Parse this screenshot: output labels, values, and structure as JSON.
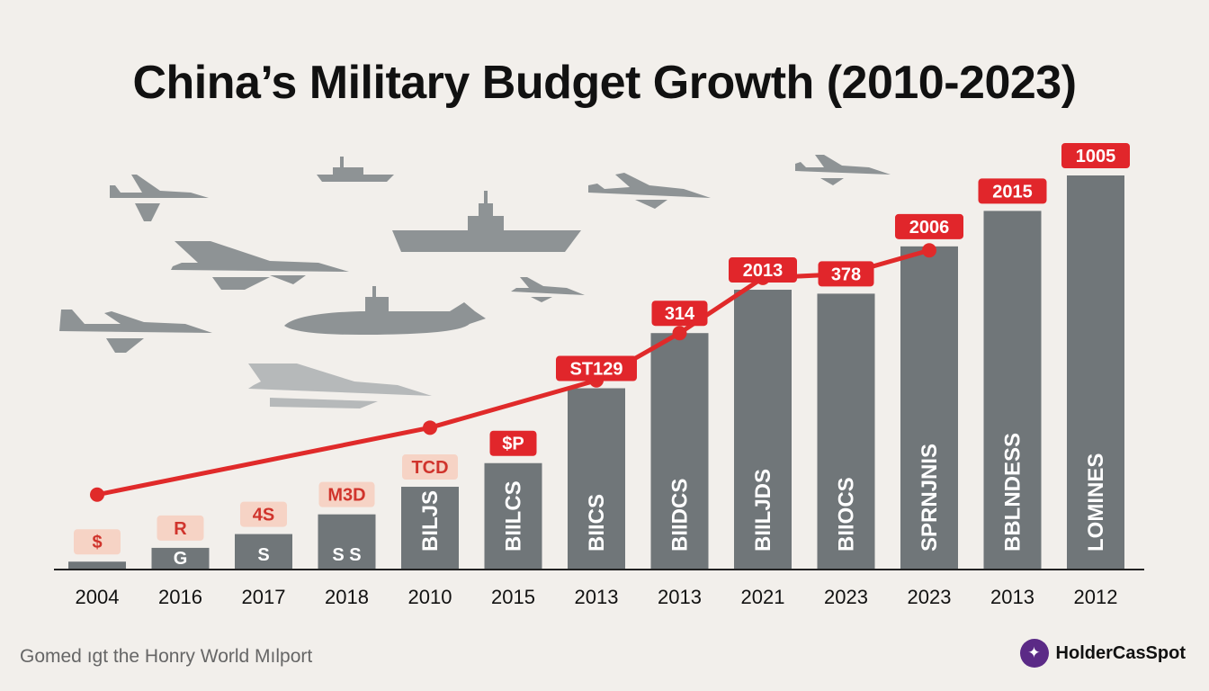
{
  "chart_data": {
    "type": "bar",
    "title": "China’s Military Budget Growth (2010-2023)",
    "categories": [
      "2004",
      "2016",
      "2017",
      "2018",
      "2010",
      "2015",
      "2013",
      "2013",
      "2021",
      "2023",
      "2023",
      "2013",
      "2012"
    ],
    "values": [
      2,
      5.5,
      9,
      14,
      21,
      27,
      46,
      60,
      71,
      70,
      82,
      91,
      100
    ],
    "bar_labels": [
      "",
      "G",
      "S",
      "S S",
      "BILJS",
      "BIILCS",
      "BIICS",
      "BIIDCS",
      "BIILJDS",
      "BIIOCS",
      "SPRNJNIS",
      "BBLNDESS",
      "LOMINES"
    ],
    "value_labels": [
      "$",
      "R",
      "4S",
      "M3D",
      "TCD",
      "$P",
      "ST129",
      "314",
      "2013",
      "378",
      "2006",
      "2015",
      "1005"
    ],
    "line": {
      "points_index": [
        0,
        4,
        6,
        7,
        8,
        9,
        10
      ],
      "values": [
        19,
        36,
        48,
        60,
        74,
        75,
        81
      ]
    },
    "ylim": [
      0,
      100
    ],
    "grid": false,
    "legend": "none"
  },
  "footer": {
    "source_text": "Gomed ıgt the Honry World Mılport"
  },
  "brand": {
    "name": "HolderCasSpot",
    "icon": "brand-logo-icon"
  },
  "colors": {
    "bar": "#707679",
    "line": "#e02a2a",
    "label_box_red": "#e1262b",
    "label_box_pale": "#f6d3c5",
    "silhouette": "#8e9395"
  }
}
